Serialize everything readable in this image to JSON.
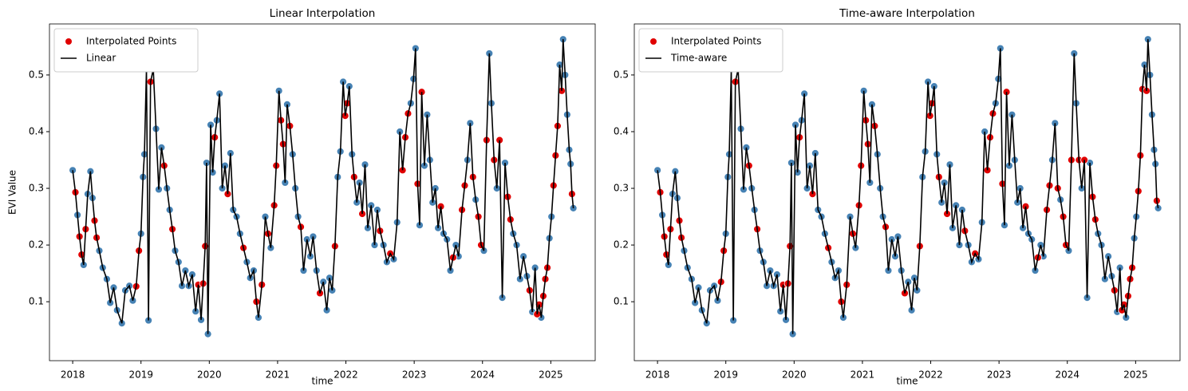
{
  "chart_data": [
    {
      "type": "line",
      "title": "Linear Interpolation",
      "xlabel": "time",
      "ylabel": "EVI Value",
      "xlim": [
        2017.66,
        2025.65
      ],
      "ylim": [
        -0.004,
        0.59
      ],
      "xticks": [
        2018,
        2019,
        2020,
        2021,
        2022,
        2023,
        2024,
        2025
      ],
      "yticks": [
        0.1,
        0.2,
        0.3,
        0.4,
        0.5
      ],
      "legend": "upper left",
      "series": [
        {
          "color": "#4682b4",
          "x": [
            2018.0,
            2018.07,
            2018.16,
            2018.22,
            2018.26,
            2018.29,
            2018.39,
            2018.44,
            2018.5,
            2018.55,
            2018.6,
            2018.65,
            2018.72,
            2018.77,
            2018.83,
            2018.88,
            2019.0,
            2019.03,
            2019.05,
            2019.08,
            2019.11,
            2019.22,
            2019.26,
            2019.3,
            2019.38,
            2019.42,
            2019.5,
            2019.55,
            2019.6,
            2019.65,
            2019.7,
            2019.75,
            2019.8,
            2019.88,
            2019.96,
            2019.98,
            2020.02,
            2020.05,
            2020.11,
            2020.15,
            2020.19,
            2020.23,
            2020.31,
            2020.35,
            2020.4,
            2020.45,
            2020.55,
            2020.6,
            2020.65,
            2020.72,
            2020.82,
            2020.9,
            2021.02,
            2021.11,
            2021.14,
            2021.22,
            2021.26,
            2021.3,
            2021.38,
            2021.43,
            2021.48,
            2021.52,
            2021.57,
            2021.67,
            2021.72,
            2021.76,
            2021.8,
            2021.88,
            2021.92,
            2021.96,
            2022.05,
            2022.09,
            2022.16,
            2022.2,
            2022.28,
            2022.32,
            2022.37,
            2022.42,
            2022.46,
            2022.55,
            2022.6,
            2022.7,
            2022.75,
            2022.79,
            2022.95,
            2022.99,
            2023.02,
            2023.08,
            2023.15,
            2023.19,
            2023.23,
            2023.27,
            2023.31,
            2023.35,
            2023.43,
            2023.48,
            2023.53,
            2023.61,
            2023.65,
            2023.78,
            2023.82,
            2023.9,
            2024.02,
            2024.1,
            2024.13,
            2024.21,
            2024.29,
            2024.33,
            2024.45,
            2024.5,
            2024.55,
            2024.6,
            2024.65,
            2024.73,
            2024.77,
            2024.86,
            2024.98,
            2025.01,
            2025.13,
            2025.18,
            2025.21,
            2025.24,
            2025.27,
            2025.29,
            2025.33
          ],
          "values": [
            0.332,
            0.253,
            0.165,
            0.29,
            0.33,
            0.283,
            0.19,
            0.16,
            0.14,
            0.098,
            0.125,
            0.085,
            0.062,
            0.12,
            0.128,
            0.102,
            0.22,
            0.32,
            0.36,
            0.51,
            0.067,
            0.405,
            0.298,
            0.372,
            0.3,
            0.262,
            0.19,
            0.17,
            0.128,
            0.155,
            0.128,
            0.148,
            0.083,
            0.068,
            0.345,
            0.043,
            0.412,
            0.328,
            0.42,
            0.467,
            0.3,
            0.34,
            0.362,
            0.262,
            0.25,
            0.22,
            0.17,
            0.142,
            0.155,
            0.072,
            0.25,
            0.195,
            0.472,
            0.31,
            0.448,
            0.36,
            0.3,
            0.25,
            0.155,
            0.21,
            0.18,
            0.215,
            0.155,
            0.135,
            0.085,
            0.142,
            0.12,
            0.32,
            0.365,
            0.488,
            0.48,
            0.36,
            0.275,
            0.31,
            0.342,
            0.23,
            0.27,
            0.2,
            0.262,
            0.2,
            0.17,
            0.175,
            0.24,
            0.4,
            0.45,
            0.493,
            0.547,
            0.235,
            0.34,
            0.43,
            0.35,
            0.275,
            0.3,
            0.23,
            0.22,
            0.21,
            0.155,
            0.2,
            0.18,
            0.35,
            0.415,
            0.28,
            0.19,
            0.538,
            0.45,
            0.3,
            0.107,
            0.345,
            0.22,
            0.2,
            0.14,
            0.18,
            0.145,
            0.082,
            0.16,
            0.072,
            0.212,
            0.25,
            0.518,
            0.563,
            0.5,
            0.43,
            0.368,
            0.343,
            0.265
          ]
        },
        {
          "name": "Interpolated Points",
          "color": "#e00000",
          "x": [
            2018.04,
            2018.1,
            2018.13,
            2018.19,
            2018.32,
            2018.35,
            2018.93,
            2018.97,
            2019.14,
            2019.18,
            2019.34,
            2019.46,
            2019.84,
            2019.91,
            2019.94,
            2020.08,
            2020.27,
            2020.5,
            2020.69,
            2020.77,
            2020.86,
            2020.95,
            2020.98,
            2021.05,
            2021.08,
            2021.18,
            2021.34,
            2021.62,
            2021.84,
            2021.99,
            2022.02,
            2022.12,
            2022.24,
            2022.5,
            2022.65,
            2022.83,
            2022.87,
            2022.91,
            2023.05,
            2023.11,
            2023.39,
            2023.57,
            2023.7,
            2023.74,
            2023.86,
            2023.94,
            2023.98,
            2024.06,
            2024.17,
            2024.25,
            2024.37,
            2024.41,
            2024.69,
            2024.8,
            2024.83,
            2024.89,
            2024.92,
            2024.95,
            2025.04,
            2025.07,
            2025.1,
            2025.16,
            2025.31
          ],
          "values": [
            0.293,
            0.215,
            0.183,
            0.228,
            0.243,
            0.213,
            0.127,
            0.19,
            0.488,
            0.51,
            0.34,
            0.228,
            0.13,
            0.132,
            0.198,
            0.39,
            0.29,
            0.195,
            0.1,
            0.13,
            0.22,
            0.27,
            0.34,
            0.42,
            0.378,
            0.41,
            0.232,
            0.115,
            0.198,
            0.428,
            0.45,
            0.32,
            0.255,
            0.225,
            0.185,
            0.332,
            0.39,
            0.432,
            0.308,
            0.47,
            0.268,
            0.178,
            0.262,
            0.305,
            0.32,
            0.25,
            0.2,
            0.385,
            0.35,
            0.385,
            0.285,
            0.245,
            0.12,
            0.078,
            0.095,
            0.11,
            0.14,
            0.16,
            0.305,
            0.358,
            0.41,
            0.472,
            0.29
          ]
        },
        {
          "name": "Linear",
          "color": "#000000"
        }
      ]
    },
    {
      "type": "line",
      "title": "Time-aware Interpolation",
      "xlabel": "time",
      "xlim": [
        2017.66,
        2025.65
      ],
      "ylim": [
        -0.004,
        0.59
      ],
      "xticks": [
        2018,
        2019,
        2020,
        2021,
        2022,
        2023,
        2024,
        2025
      ],
      "yticks": [
        0.1,
        0.2,
        0.3,
        0.4,
        0.5
      ],
      "legend": "upper left",
      "series": [
        {
          "color": "#4682b4",
          "x": [
            2018.0,
            2018.07,
            2018.16,
            2018.22,
            2018.26,
            2018.29,
            2018.39,
            2018.44,
            2018.5,
            2018.55,
            2018.6,
            2018.65,
            2018.72,
            2018.77,
            2018.83,
            2018.88,
            2019.0,
            2019.03,
            2019.05,
            2019.08,
            2019.11,
            2019.22,
            2019.26,
            2019.3,
            2019.38,
            2019.42,
            2019.5,
            2019.55,
            2019.6,
            2019.65,
            2019.7,
            2019.75,
            2019.8,
            2019.88,
            2019.96,
            2019.98,
            2020.02,
            2020.05,
            2020.11,
            2020.15,
            2020.19,
            2020.23,
            2020.31,
            2020.35,
            2020.4,
            2020.45,
            2020.55,
            2020.6,
            2020.65,
            2020.72,
            2020.82,
            2020.9,
            2021.02,
            2021.11,
            2021.14,
            2021.22,
            2021.26,
            2021.3,
            2021.38,
            2021.43,
            2021.48,
            2021.52,
            2021.57,
            2021.67,
            2021.72,
            2021.76,
            2021.8,
            2021.88,
            2021.92,
            2021.96,
            2022.05,
            2022.09,
            2022.16,
            2022.2,
            2022.28,
            2022.32,
            2022.37,
            2022.42,
            2022.46,
            2022.55,
            2022.6,
            2022.7,
            2022.75,
            2022.79,
            2022.95,
            2022.99,
            2023.02,
            2023.08,
            2023.15,
            2023.19,
            2023.23,
            2023.27,
            2023.31,
            2023.35,
            2023.43,
            2023.48,
            2023.53,
            2023.61,
            2023.65,
            2023.78,
            2023.82,
            2023.9,
            2024.02,
            2024.1,
            2024.13,
            2024.21,
            2024.29,
            2024.33,
            2024.45,
            2024.5,
            2024.55,
            2024.6,
            2024.65,
            2024.73,
            2024.77,
            2024.86,
            2024.98,
            2025.01,
            2025.13,
            2025.18,
            2025.21,
            2025.24,
            2025.27,
            2025.29,
            2025.33
          ],
          "values": [
            0.332,
            0.253,
            0.165,
            0.29,
            0.33,
            0.283,
            0.19,
            0.16,
            0.14,
            0.098,
            0.125,
            0.085,
            0.062,
            0.12,
            0.128,
            0.102,
            0.22,
            0.32,
            0.36,
            0.51,
            0.067,
            0.405,
            0.298,
            0.372,
            0.3,
            0.262,
            0.19,
            0.17,
            0.128,
            0.155,
            0.128,
            0.148,
            0.083,
            0.068,
            0.345,
            0.043,
            0.412,
            0.328,
            0.42,
            0.467,
            0.3,
            0.34,
            0.362,
            0.262,
            0.25,
            0.22,
            0.17,
            0.142,
            0.155,
            0.072,
            0.25,
            0.195,
            0.472,
            0.31,
            0.448,
            0.36,
            0.3,
            0.25,
            0.155,
            0.21,
            0.18,
            0.215,
            0.155,
            0.135,
            0.085,
            0.142,
            0.12,
            0.32,
            0.365,
            0.488,
            0.48,
            0.36,
            0.275,
            0.31,
            0.342,
            0.23,
            0.27,
            0.2,
            0.262,
            0.2,
            0.17,
            0.175,
            0.24,
            0.4,
            0.45,
            0.493,
            0.547,
            0.235,
            0.34,
            0.43,
            0.35,
            0.275,
            0.3,
            0.23,
            0.22,
            0.21,
            0.155,
            0.2,
            0.18,
            0.35,
            0.415,
            0.28,
            0.19,
            0.538,
            0.45,
            0.3,
            0.107,
            0.345,
            0.22,
            0.2,
            0.14,
            0.18,
            0.145,
            0.082,
            0.16,
            0.072,
            0.212,
            0.25,
            0.518,
            0.563,
            0.5,
            0.43,
            0.368,
            0.343,
            0.265
          ]
        },
        {
          "name": "Interpolated Points",
          "color": "#e00000",
          "x": [
            2018.04,
            2018.1,
            2018.13,
            2018.19,
            2018.32,
            2018.35,
            2018.93,
            2018.97,
            2019.14,
            2019.18,
            2019.34,
            2019.46,
            2019.84,
            2019.91,
            2019.94,
            2020.08,
            2020.27,
            2020.5,
            2020.69,
            2020.77,
            2020.86,
            2020.95,
            2020.98,
            2021.05,
            2021.08,
            2021.18,
            2021.34,
            2021.62,
            2021.84,
            2021.99,
            2022.02,
            2022.12,
            2022.24,
            2022.5,
            2022.65,
            2022.83,
            2022.87,
            2022.91,
            2023.05,
            2023.11,
            2023.39,
            2023.57,
            2023.7,
            2023.74,
            2023.86,
            2023.94,
            2023.98,
            2024.06,
            2024.17,
            2024.25,
            2024.37,
            2024.41,
            2024.69,
            2024.8,
            2024.83,
            2024.89,
            2024.92,
            2024.95,
            2025.04,
            2025.07,
            2025.1,
            2025.16,
            2025.31
          ],
          "values": [
            0.293,
            0.215,
            0.183,
            0.228,
            0.243,
            0.213,
            0.135,
            0.19,
            0.488,
            0.51,
            0.34,
            0.228,
            0.13,
            0.132,
            0.198,
            0.39,
            0.29,
            0.195,
            0.1,
            0.13,
            0.22,
            0.27,
            0.34,
            0.42,
            0.378,
            0.41,
            0.232,
            0.115,
            0.198,
            0.428,
            0.45,
            0.32,
            0.255,
            0.225,
            0.185,
            0.332,
            0.39,
            0.432,
            0.308,
            0.47,
            0.268,
            0.178,
            0.262,
            0.305,
            0.3,
            0.25,
            0.2,
            0.35,
            0.35,
            0.35,
            0.285,
            0.245,
            0.12,
            0.085,
            0.095,
            0.11,
            0.14,
            0.16,
            0.295,
            0.358,
            0.475,
            0.472,
            0.278
          ]
        },
        {
          "name": "Time-aware",
          "color": "#000000"
        }
      ]
    }
  ]
}
